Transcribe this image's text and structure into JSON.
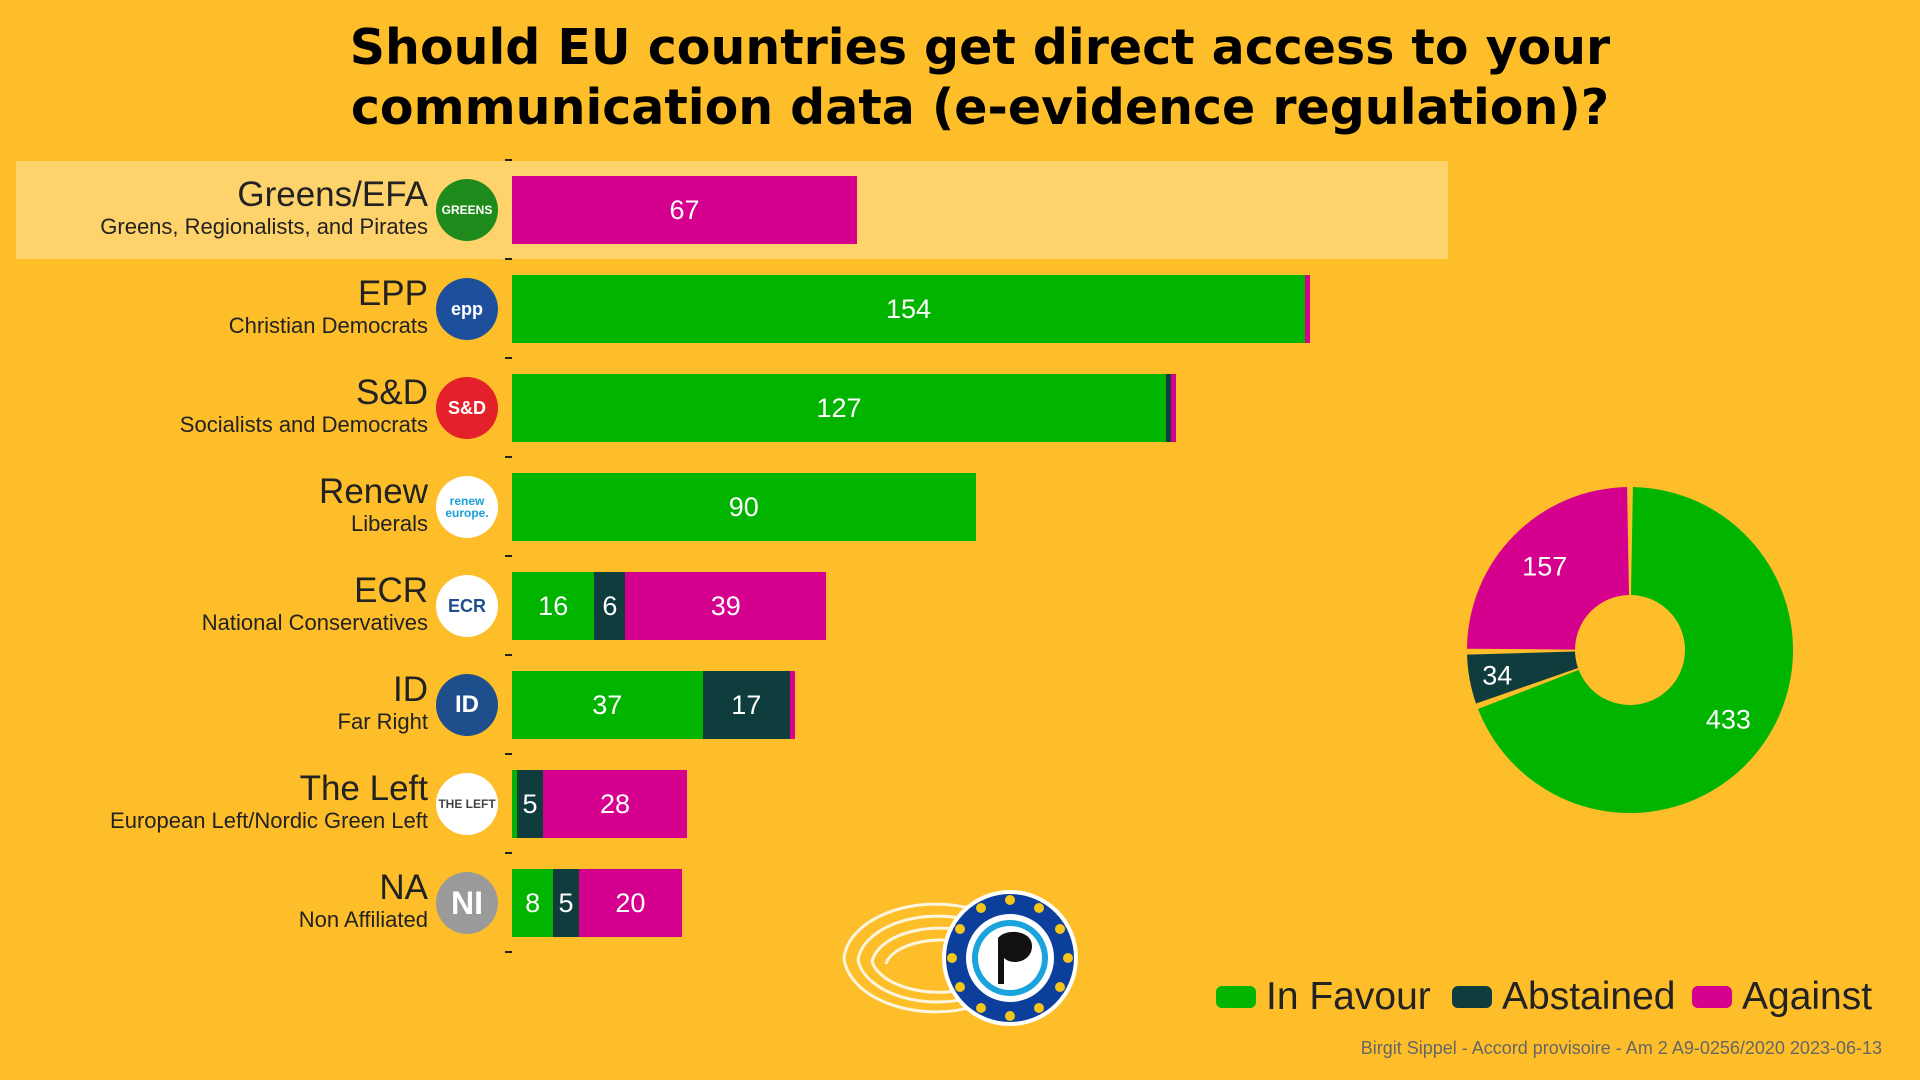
{
  "title_line1": "Should EU countries get direct access to your",
  "title_line2": "communication data (e-evidence regulation)?",
  "colors": {
    "favour": "#00B400",
    "abstained": "#0F3D3E",
    "against": "#D6008F",
    "background": "#FDBE29"
  },
  "legend": {
    "favour": "In Favour",
    "abstained": "Abstained",
    "against": "Against"
  },
  "source": "Birgit Sippel - Accord provisoire - Am 2 A9-0256/2020 2023-06-13",
  "chart_data": [
    {
      "type": "bar",
      "title": "Should EU countries get direct access to your communication data (e-evidence regulation)?",
      "orientation": "horizontal",
      "stacked": true,
      "categories": [
        "Greens/EFA",
        "EPP",
        "S&D",
        "Renew",
        "ECR",
        "ID",
        "The Left",
        "NA"
      ],
      "subtitles": [
        "Greens, Regionalists, and Pirates",
        "Christian Democrats",
        "Socialists and Democrats",
        "Liberals",
        "National Conservatives",
        "Far Right",
        "European Left/Nordic Green Left",
        "Non Affiliated"
      ],
      "logos": [
        "GREENS",
        "epp",
        "S&D",
        "renew europe.",
        "ECR",
        "ID",
        "THE LEFT",
        "NI"
      ],
      "highlighted": "Greens/EFA",
      "series": [
        {
          "name": "In Favour",
          "values": [
            0,
            154,
            127,
            90,
            16,
            37,
            1,
            8
          ]
        },
        {
          "name": "Abstained",
          "values": [
            0,
            0,
            1,
            0,
            6,
            17,
            5,
            5
          ]
        },
        {
          "name": "Against",
          "values": [
            67,
            1,
            1,
            0,
            39,
            1,
            28,
            20
          ]
        }
      ],
      "labels_shown": [
        [
          "",
          "",
          "67"
        ],
        [
          "154",
          "",
          ""
        ],
        [
          "127",
          "",
          ""
        ],
        [
          "90",
          "",
          ""
        ],
        [
          "16",
          "6",
          "39"
        ],
        [
          "37",
          "17",
          ""
        ],
        [
          "",
          "5",
          "28"
        ],
        [
          "8",
          "5",
          "20"
        ]
      ],
      "legend": "bottom-right"
    },
    {
      "type": "pie",
      "donut": true,
      "labels": [
        "In Favour",
        "Abstained",
        "Against"
      ],
      "values": [
        433,
        34,
        157
      ]
    }
  ]
}
